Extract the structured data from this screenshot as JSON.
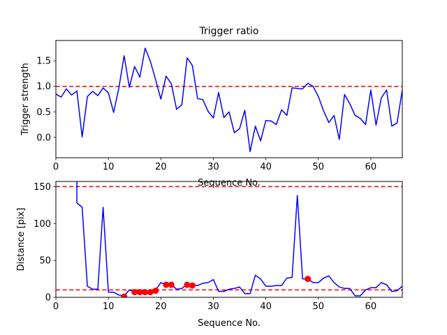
{
  "chart_data": [
    {
      "type": "line",
      "title": "Trigger ratio",
      "xlabel": "Sequence No.",
      "ylabel": "Trigger strength",
      "xlim": [
        0,
        66
      ],
      "ylim": [
        -0.4,
        1.9
      ],
      "xticks": [
        0,
        10,
        20,
        30,
        40,
        50,
        60
      ],
      "yticks": [
        0.0,
        0.5,
        1.0,
        1.5
      ],
      "ytick_labels": [
        "0.0",
        "0.5",
        "1.0",
        "1.5"
      ],
      "grid": false,
      "threshold": {
        "value": 1.0,
        "color": "#ff0000",
        "style": "dashed"
      },
      "series": [
        {
          "color": "#0000ff",
          "x": [
            0,
            1,
            2,
            3,
            4,
            5,
            6,
            7,
            8,
            9,
            10,
            11,
            12,
            13,
            14,
            15,
            16,
            17,
            18,
            19,
            20,
            21,
            22,
            23,
            24,
            25,
            26,
            27,
            28,
            29,
            30,
            31,
            32,
            33,
            34,
            35,
            36,
            37,
            38,
            39,
            40,
            41,
            42,
            43,
            44,
            45,
            46,
            47,
            48,
            49,
            50,
            51,
            52,
            53,
            54,
            55,
            56,
            57,
            58,
            59,
            60,
            61,
            62,
            63,
            64,
            65,
            66
          ],
          "y": [
            0.85,
            0.79,
            0.95,
            0.83,
            0.91,
            0.01,
            0.8,
            0.9,
            0.82,
            0.97,
            0.87,
            0.49,
            0.97,
            1.6,
            0.98,
            1.39,
            1.18,
            1.75,
            1.49,
            1.13,
            0.75,
            1.2,
            1.05,
            0.55,
            0.64,
            1.56,
            1.41,
            0.76,
            0.74,
            0.51,
            0.38,
            0.88,
            0.39,
            0.5,
            0.09,
            0.17,
            0.53,
            -0.28,
            0.22,
            -0.07,
            0.33,
            0.32,
            0.25,
            0.54,
            0.43,
            0.97,
            0.96,
            0.95,
            1.06,
            1.0,
            0.8,
            0.52,
            0.29,
            0.43,
            -0.04,
            0.84,
            0.66,
            0.43,
            0.37,
            0.25,
            0.93,
            0.24,
            0.77,
            0.93,
            0.22,
            0.28,
            0.93
          ]
        }
      ]
    },
    {
      "type": "line",
      "title": "",
      "xlabel": "Sequence No.",
      "ylabel": "Distance [pix]",
      "xlim": [
        0,
        66
      ],
      "ylim": [
        0,
        157
      ],
      "xticks": [
        0,
        10,
        20,
        30,
        40,
        50,
        60
      ],
      "yticks": [
        0,
        50,
        100,
        150
      ],
      "ytick_labels": [
        "0",
        "50",
        "100",
        "150"
      ],
      "grid": false,
      "thresholds": [
        {
          "value": 150,
          "color": "#ff0000",
          "style": "dashed"
        },
        {
          "value": 10,
          "color": "#ff0000",
          "style": "dashed"
        }
      ],
      "series": [
        {
          "color": "#0000ff",
          "x": [
            4,
            4,
            5,
            6,
            7,
            8,
            9,
            10,
            11,
            12,
            13,
            14,
            15,
            16,
            17,
            18,
            19,
            20,
            21,
            22,
            23,
            24,
            25,
            26,
            27,
            28,
            29,
            30,
            31,
            32,
            33,
            34,
            35,
            36,
            37,
            38,
            39,
            40,
            41,
            42,
            43,
            44,
            45,
            46,
            47,
            48,
            49,
            50,
            51,
            52,
            53,
            54,
            55,
            56,
            57,
            58,
            59,
            60,
            61,
            62,
            63,
            64,
            65,
            66
          ],
          "y": [
            157,
            128,
            122,
            15,
            11,
            11,
            122,
            7,
            7,
            3,
            2,
            10,
            7,
            7,
            7,
            7,
            10,
            20,
            17,
            17,
            11,
            12,
            18,
            17,
            16,
            19,
            20,
            24,
            8,
            8,
            11,
            12,
            14,
            5,
            5,
            30,
            25,
            15,
            15,
            16,
            16,
            26,
            27,
            138,
            25,
            25,
            20,
            20,
            26,
            29,
            20,
            14,
            12,
            12,
            2,
            2,
            10,
            13,
            13,
            20,
            17,
            8,
            9,
            15
          ]
        },
        {
          "type": "scatter",
          "color": "#ff0000",
          "x": [
            13,
            15,
            16,
            17,
            18,
            19,
            21,
            22,
            25,
            26,
            48
          ],
          "y": [
            1,
            7,
            7,
            7,
            7,
            9,
            17,
            17,
            17,
            16,
            25
          ]
        }
      ]
    }
  ]
}
